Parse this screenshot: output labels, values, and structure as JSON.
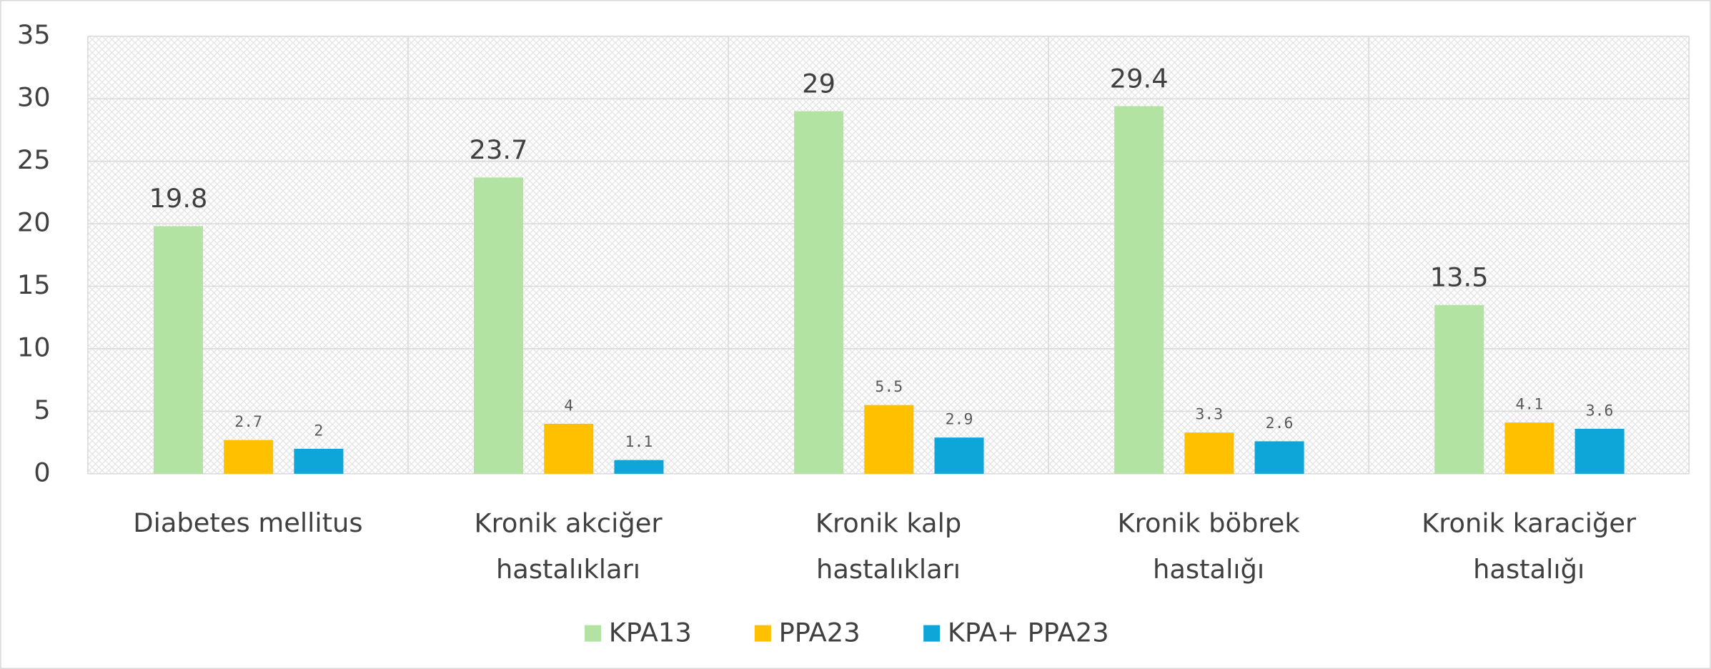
{
  "chart_data": {
    "type": "bar",
    "categories": [
      "Diabetes mellitus",
      "Kronik akciğer hastalıkları",
      "Kronik kalp hastalıkları",
      "Kronik böbrek hastalığı",
      "Kronik karaciğer hastalığı"
    ],
    "series": [
      {
        "name": "KPA13",
        "color": "#b3e3a2",
        "values": [
          19.8,
          23.7,
          29,
          29.4,
          13.5
        ]
      },
      {
        "name": "PPA23",
        "color": "#ffc000",
        "values": [
          2.7,
          4,
          5.5,
          3.3,
          4.1
        ]
      },
      {
        "name": "KPA+ PPA23",
        "color": "#0ea5d8",
        "values": [
          2,
          1.1,
          2.9,
          2.6,
          3.6
        ]
      }
    ],
    "ylim": [
      0,
      35
    ],
    "yticks": [
      0,
      5,
      10,
      15,
      20,
      25,
      30,
      35
    ],
    "grid": true,
    "legend": "bottom"
  }
}
